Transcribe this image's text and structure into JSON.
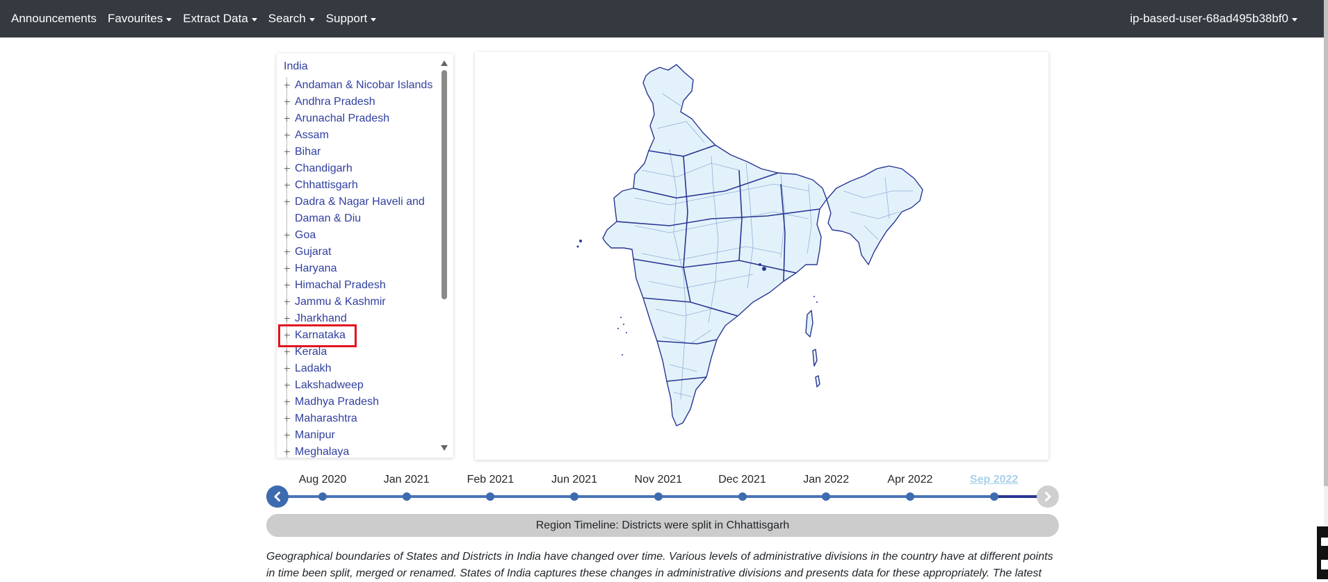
{
  "nav": {
    "items": [
      {
        "label": "Announcements",
        "dropdown": false
      },
      {
        "label": "Favourites",
        "dropdown": true
      },
      {
        "label": "Extract Data",
        "dropdown": true
      },
      {
        "label": "Search",
        "dropdown": true
      },
      {
        "label": "Support",
        "dropdown": true
      }
    ],
    "user": "ip-based-user-68ad495b38bf0"
  },
  "tree": {
    "root": "India",
    "items": [
      "Andaman & Nicobar Islands",
      "Andhra Pradesh",
      "Arunachal Pradesh",
      "Assam",
      "Bihar",
      "Chandigarh",
      "Chhattisgarh",
      "Dadra & Nagar Haveli and Daman & Diu",
      "Goa",
      "Gujarat",
      "Haryana",
      "Himachal Pradesh",
      "Jammu & Kashmir",
      "Jharkhand",
      "Karnataka",
      "Kerala",
      "Ladakh",
      "Lakshadweep",
      "Madhya Pradesh",
      "Maharashtra",
      "Manipur",
      "Meghalaya"
    ],
    "highlighted": "Karnataka"
  },
  "timeline": {
    "dates": [
      "Aug 2020",
      "Jan 2021",
      "Feb 2021",
      "Jun 2021",
      "Nov 2021",
      "Dec 2021",
      "Jan 2022",
      "Apr 2022",
      "Sep 2022"
    ],
    "active": "Sep 2022",
    "status": "Region Timeline: Districts were split in Chhattisgarh"
  },
  "description": "Geographical boundaries of States and Districts in India have changed over time. Various levels of administrative divisions in the country have at different points in time been split, merged or renamed. States of India captures these changes in administrative divisions and presents data for these appropriately. The latest",
  "colors": {
    "navbar": "#343a40",
    "link": "#303f9f",
    "map_fill": "#e3f2fa",
    "map_stroke": "#283593",
    "timeline": "#3d6bb0",
    "highlight": "#e0151f"
  }
}
